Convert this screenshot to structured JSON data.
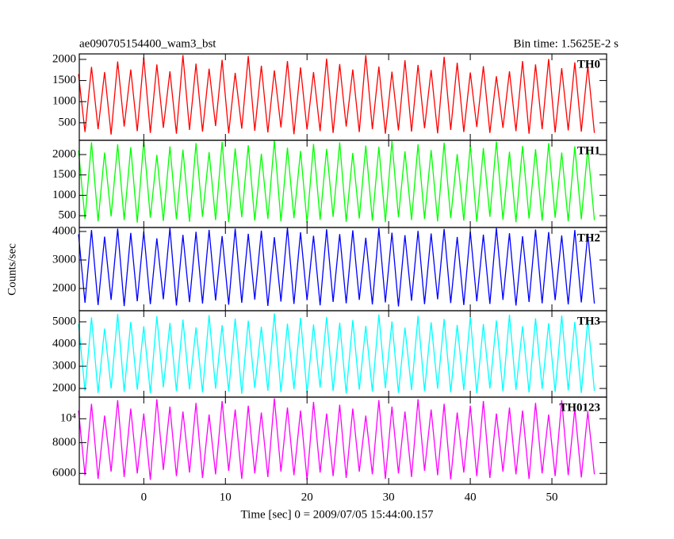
{
  "chart_data": {
    "type": "line",
    "title": "ae090705154400_wam3_bst",
    "subtitle": "Bin time: 1.5625E-2 s",
    "ylabel": "Counts/sec",
    "xlabel": "Time [sec] 0 = 2009/07/05 15:44:00.157",
    "xlim": [
      -7.9,
      56.7
    ],
    "xticks": [
      0,
      10,
      20,
      30,
      40,
      50
    ],
    "x": [
      -8,
      -7.2,
      -6.4,
      -5.6,
      -4.8,
      -4,
      -3.2,
      -2.4,
      -1.6,
      -0.8,
      0,
      0.8,
      1.6,
      2.4,
      3.2,
      4,
      4.8,
      5.6,
      6.4,
      7.2,
      8,
      8.8,
      9.6,
      10.4,
      11.2,
      12,
      12.8,
      13.6,
      14.4,
      15.2,
      16,
      16.8,
      17.6,
      18.4,
      19.2,
      20,
      20.8,
      21.6,
      22.4,
      23.2,
      24,
      24.8,
      25.6,
      26.4,
      27.2,
      28,
      28.8,
      29.6,
      30.4,
      31.2,
      32,
      32.8,
      33.6,
      34.4,
      35.2,
      36,
      36.8,
      37.6,
      38.4,
      39.2,
      40,
      40.8,
      41.6,
      42.4,
      43.2,
      44,
      44.8,
      45.6,
      46.4,
      47.2,
      48,
      48.8,
      49.6,
      50.4,
      51.2,
      52,
      52.8,
      53.6,
      54.4,
      55.2
    ],
    "series": [
      {
        "name": "TH0",
        "color": "#ff0000",
        "ylim": [
          85,
          2130
        ],
        "yticks": [
          500,
          1000,
          1500,
          2000
        ],
        "log": false,
        "values": [
          1650,
          280,
          1820,
          350,
          1700,
          220,
          1950,
          410,
          1760,
          300,
          2050,
          260,
          1880,
          380,
          1720,
          240,
          2100,
          330,
          1900,
          290,
          1780,
          420,
          1990,
          250,
          1680,
          360,
          2080,
          310,
          1850,
          270,
          1740,
          390,
          1960,
          230,
          1810,
          340,
          1700,
          300,
          2020,
          260,
          1890,
          410,
          1760,
          280,
          2100,
          350,
          1830,
          240,
          1710,
          320,
          1980,
          290,
          1870,
          370,
          1750,
          250,
          2060,
          330,
          1920,
          280,
          1690,
          400,
          1840,
          260,
          1600,
          380,
          1720,
          300,
          1960,
          240,
          1880,
          350,
          2010,
          270,
          1790,
          320,
          1930,
          290,
          1850,
          260
        ]
      },
      {
        "name": "TH1",
        "color": "#00ff00",
        "ylim": [
          210,
          2350
        ],
        "yticks": [
          500,
          1000,
          1500,
          2000
        ],
        "log": false,
        "values": [
          2100,
          420,
          2300,
          360,
          2050,
          480,
          2250,
          390,
          2180,
          330,
          2340,
          450,
          1990,
          370,
          2200,
          410,
          2120,
          350,
          2280,
          470,
          2060,
          390,
          2310,
          340,
          2150,
          460,
          2230,
          380,
          2020,
          420,
          2350,
          360,
          2170,
          440,
          2090,
          330,
          2260,
          400,
          2140,
          470,
          2300,
          350,
          2040,
          430,
          2220,
          380,
          2190,
          340,
          2330,
          460,
          2080,
          390,
          2250,
          420,
          2110,
          360,
          2290,
          440,
          2010,
          380,
          2240,
          350,
          2160,
          470,
          2320,
          400,
          2070,
          340,
          2210,
          430,
          2130,
          380,
          2280,
          450,
          2050,
          360,
          2200,
          410,
          2150,
          390
        ]
      },
      {
        "name": "TH2",
        "color": "#0000ff",
        "ylim": [
          1220,
          4140
        ],
        "yticks": [
          2000,
          3000,
          4000
        ],
        "log": false,
        "values": [
          3900,
          1500,
          4050,
          1420,
          3820,
          1600,
          4100,
          1380,
          3950,
          1550,
          4000,
          1450,
          3760,
          1620,
          4120,
          1400,
          3880,
          1520,
          3990,
          1470,
          4060,
          1580,
          3840,
          1430,
          4100,
          1500,
          3920,
          1610,
          4030,
          1390,
          3800,
          1540,
          4130,
          1460,
          3970,
          1590,
          3850,
          1410,
          4080,
          1530,
          3910,
          1480,
          4040,
          1600,
          3780,
          1440,
          4110,
          1510,
          3960,
          1370,
          3870,
          1570,
          4020,
          1450,
          3930,
          1620,
          4090,
          1490,
          3810,
          1420,
          4000,
          1550,
          3890,
          1460,
          4120,
          1600,
          3940,
          1400,
          3830,
          1530,
          4070,
          1480,
          3980,
          1590,
          3860,
          1440,
          4050,
          1510,
          3920,
          1470
        ]
      },
      {
        "name": "TH3",
        "color": "#00ffff",
        "ylim": [
          1610,
          5500
        ],
        "yticks": [
          2000,
          3000,
          4000,
          5000
        ],
        "log": false,
        "values": [
          4900,
          1900,
          5200,
          1800,
          4700,
          2000,
          5350,
          1850,
          5000,
          1950,
          4800,
          1780,
          5250,
          2050,
          4950,
          1880,
          5100,
          1960,
          4750,
          1820,
          5300,
          1990,
          4850,
          1870,
          5150,
          1760,
          5050,
          2020,
          4780,
          1900,
          5380,
          1840,
          4920,
          1970,
          5180,
          1810,
          4880,
          2040,
          5220,
          1890,
          4960,
          1770,
          5080,
          1950,
          4820,
          1860,
          5330,
          2010,
          5020,
          1800,
          4740,
          1930,
          5270,
          1880,
          4980,
          1990,
          5130,
          1830,
          4860,
          1920,
          5240,
          1790,
          4900,
          2000,
          5060,
          1870,
          5320,
          1940,
          4800,
          1820,
          5160,
          1980,
          4940,
          1850,
          5280,
          1910,
          5000,
          1800,
          5100,
          1900
        ]
      },
      {
        "name": "TH0123",
        "color": "#ff00ff",
        "ylim": [
          5420,
          12240
        ],
        "yticks": [
          6000,
          8000,
          {
            "value": 10000,
            "label": "10⁴"
          }
        ],
        "log": true,
        "values": [
          10800,
          5900,
          11500,
          5700,
          10300,
          6100,
          11900,
          5800,
          11000,
          6000,
          10500,
          5650,
          12000,
          6200,
          11200,
          5850,
          10700,
          6050,
          11600,
          5750,
          10400,
          5950,
          11800,
          6150,
          10900,
          5700,
          11300,
          6000,
          10600,
          5800,
          12100,
          6100,
          11100,
          5900,
          10800,
          5650,
          11700,
          6050,
          10500,
          5850,
          11400,
          5750,
          11000,
          6100,
          10300,
          5950,
          11900,
          5700,
          11200,
          6000,
          10700,
          5800,
          12000,
          6150,
          10900,
          5900,
          11500,
          5680,
          10600,
          6050,
          11300,
          5850,
          11800,
          5750,
          10500,
          6100,
          11100,
          5950,
          10800,
          5700,
          11600,
          6000,
          10400,
          5850,
          11900,
          5900,
          11000,
          5780,
          10700,
          5950
        ]
      }
    ]
  }
}
